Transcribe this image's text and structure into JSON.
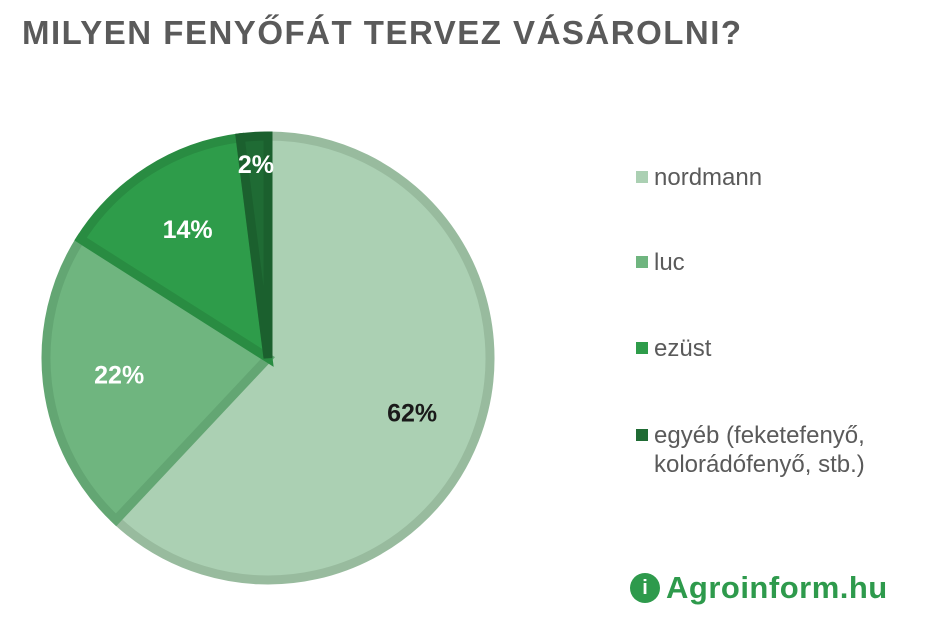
{
  "title": "MILYEN FENYŐFÁT TERVEZ VÁSÁROLNI?",
  "logo": {
    "icon_glyph": "i",
    "icon_name": "info-leaf-icon",
    "text": "Agroinform.hu",
    "color": "#2e9a4c"
  },
  "chart_data": {
    "type": "pie",
    "title": "MILYEN FENYŐFÁT TERVEZ VÁSÁROLNI?",
    "unit": "%",
    "legend_position": "right",
    "slices": [
      {
        "label": "nordmann",
        "value": 62,
        "display": "62%",
        "color": "#abd0b3",
        "border": "#98bb9e",
        "label_color": "#1a1a1a"
      },
      {
        "label": "luc",
        "value": 22,
        "display": "22%",
        "color": "#6fb57f",
        "border": "#63a673",
        "label_color": "#ffffff"
      },
      {
        "label": "ezüst",
        "value": 14,
        "display": "14%",
        "color": "#2e9c4a",
        "border": "#298c42",
        "label_color": "#ffffff"
      },
      {
        "label": "egyéb (feketefenyő, kolorádófenyő, stb.)",
        "lines": [
          "egyéb (feketefenyő,",
          "kolorádófenyő, stb.)"
        ],
        "value": 2,
        "display": "2%",
        "color": "#1f6b34",
        "border": "#1b602e",
        "label_color": "#ffffff"
      }
    ]
  }
}
